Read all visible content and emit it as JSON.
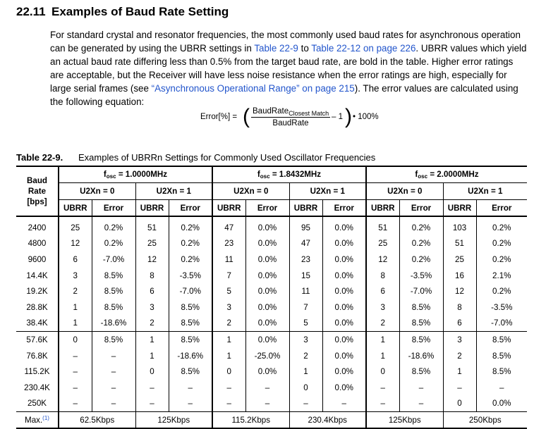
{
  "section": {
    "number": "22.11",
    "title": "Examples of Baud Rate Setting"
  },
  "paragraph": {
    "p1": "For standard crystal and resonator frequencies, the most commonly used baud rates for asynchronous operation can be generated by using the UBRR settings in ",
    "link1": "Table 22-9",
    "p2": " to ",
    "link2": "Table 22-12 on page 226",
    "p3": ". UBRR values which yield an actual baud rate differing less than 0.5% from the target baud rate, are bold in the table. Higher error ratings are acceptable, but the Receiver will have less noise resistance when the error ratings are high, especially for large serial frames (see ",
    "link3": "“Asynchronous Operational Range” on page 215",
    "p4": "). The error values are calculated using the following equation:"
  },
  "equation": {
    "lhs": "Error[%] =",
    "numerator": "BaudRate",
    "numerator_sub": "Closest Match",
    "denominator": "BaudRate",
    "minus": "– 1",
    "rhs": "• 100%"
  },
  "table": {
    "number": "Table 22-9.",
    "caption": "Examples of UBRRn Settings for Commonly Used Oscillator Frequencies",
    "rowhead": {
      "l1": "Baud",
      "l2": "Rate",
      "l3": "[bps]"
    },
    "fosc_label": "f",
    "fosc_sub": "osc",
    "groups": [
      "= 1.0000MHz",
      "= 1.8432MHz",
      "= 2.0000MHz"
    ],
    "modes": [
      "U2Xn = 0",
      "U2Xn = 1"
    ],
    "col_ubrr": "UBRR",
    "col_error": "Error",
    "rows": [
      [
        "2400",
        "25",
        "0.2%",
        "51",
        "0.2%",
        "47",
        "0.0%",
        "95",
        "0.0%",
        "51",
        "0.2%",
        "103",
        "0.2%"
      ],
      [
        "4800",
        "12",
        "0.2%",
        "25",
        "0.2%",
        "23",
        "0.0%",
        "47",
        "0.0%",
        "25",
        "0.2%",
        "51",
        "0.2%"
      ],
      [
        "9600",
        "6",
        "-7.0%",
        "12",
        "0.2%",
        "11",
        "0.0%",
        "23",
        "0.0%",
        "12",
        "0.2%",
        "25",
        "0.2%"
      ],
      [
        "14.4K",
        "3",
        "8.5%",
        "8",
        "-3.5%",
        "7",
        "0.0%",
        "15",
        "0.0%",
        "8",
        "-3.5%",
        "16",
        "2.1%"
      ],
      [
        "19.2K",
        "2",
        "8.5%",
        "6",
        "-7.0%",
        "5",
        "0.0%",
        "11",
        "0.0%",
        "6",
        "-7.0%",
        "12",
        "0.2%"
      ],
      [
        "28.8K",
        "1",
        "8.5%",
        "3",
        "8.5%",
        "3",
        "0.0%",
        "7",
        "0.0%",
        "3",
        "8.5%",
        "8",
        "-3.5%"
      ],
      [
        "38.4K",
        "1",
        "-18.6%",
        "2",
        "8.5%",
        "2",
        "0.0%",
        "5",
        "0.0%",
        "2",
        "8.5%",
        "6",
        "-7.0%"
      ],
      [
        "57.6K",
        "0",
        "8.5%",
        "1",
        "8.5%",
        "1",
        "0.0%",
        "3",
        "0.0%",
        "1",
        "8.5%",
        "3",
        "8.5%"
      ],
      [
        "76.8K",
        "–",
        "–",
        "1",
        "-18.6%",
        "1",
        "-25.0%",
        "2",
        "0.0%",
        "1",
        "-18.6%",
        "2",
        "8.5%"
      ],
      [
        "115.2K",
        "–",
        "–",
        "0",
        "8.5%",
        "0",
        "0.0%",
        "1",
        "0.0%",
        "0",
        "8.5%",
        "1",
        "8.5%"
      ],
      [
        "230.4K",
        "–",
        "–",
        "–",
        "–",
        "–",
        "–",
        "0",
        "0.0%",
        "–",
        "–",
        "–",
        "–"
      ],
      [
        "250K",
        "–",
        "–",
        "–",
        "–",
        "–",
        "–",
        "–",
        "–",
        "–",
        "–",
        "0",
        "0.0%"
      ]
    ],
    "max_label": "Max.",
    "max_note": "(1)",
    "max_values": [
      "62.5Kbps",
      "125Kbps",
      "115.2Kbps",
      "230.4Kbps",
      "125Kbps",
      "250Kbps"
    ]
  }
}
